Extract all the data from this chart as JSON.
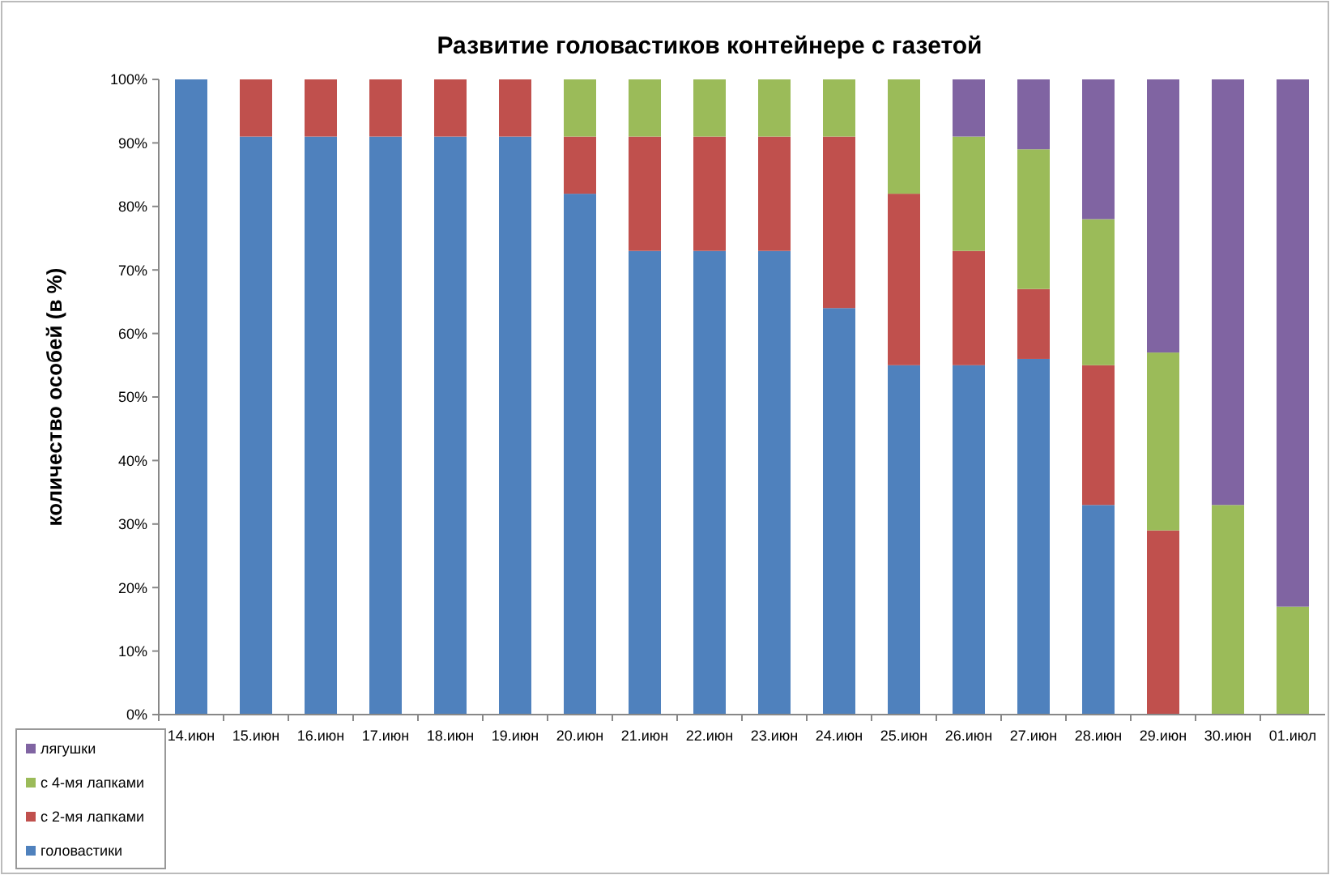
{
  "chart_data": {
    "type": "bar",
    "stacked": true,
    "title": "Развитие головастиков контейнере с газетой",
    "ylabel": "количество особей (в %)",
    "categories": [
      "14.июн",
      "15.июн",
      "16.июн",
      "17.июн",
      "18.июн",
      "19.июн",
      "20.июн",
      "21.июн",
      "22.июн",
      "23.июн",
      "24.июн",
      "25.июн",
      "26.июн",
      "27.июн",
      "28.июн",
      "29.июн",
      "30.июн",
      "01.июл"
    ],
    "series": [
      {
        "name": "головастики",
        "color": "#4f81bd",
        "values": [
          100,
          91,
          91,
          91,
          91,
          91,
          82,
          73,
          73,
          73,
          64,
          55,
          55,
          56,
          33,
          0,
          0,
          0
        ]
      },
      {
        "name": "с 2-мя лапками",
        "color": "#c0504d",
        "values": [
          0,
          9,
          9,
          9,
          9,
          9,
          9,
          18,
          18,
          18,
          27,
          27,
          18,
          11,
          22,
          29,
          0,
          0
        ]
      },
      {
        "name": "с 4-мя лапками",
        "color": "#9bbb59",
        "values": [
          0,
          0,
          0,
          0,
          0,
          0,
          9,
          9,
          9,
          9,
          9,
          18,
          18,
          22,
          23,
          28,
          33,
          17
        ]
      },
      {
        "name": "лягушки",
        "color": "#8064a2",
        "values": [
          0,
          0,
          0,
          0,
          0,
          0,
          0,
          0,
          0,
          0,
          0,
          0,
          9,
          11,
          22,
          43,
          67,
          83
        ]
      }
    ],
    "ylim": [
      0,
      100
    ],
    "yticks": [
      {
        "value": 0,
        "label": "0%"
      },
      {
        "value": 10,
        "label": "10%"
      },
      {
        "value": 20,
        "label": "20%"
      },
      {
        "value": 30,
        "label": "30%"
      },
      {
        "value": 40,
        "label": "40%"
      },
      {
        "value": 50,
        "label": "50%"
      },
      {
        "value": 60,
        "label": "60%"
      },
      {
        "value": 70,
        "label": "70%"
      },
      {
        "value": 80,
        "label": "80%"
      },
      {
        "value": 90,
        "label": "90%"
      },
      {
        "value": 100,
        "label": "100%"
      }
    ],
    "legend": "bottom left"
  }
}
